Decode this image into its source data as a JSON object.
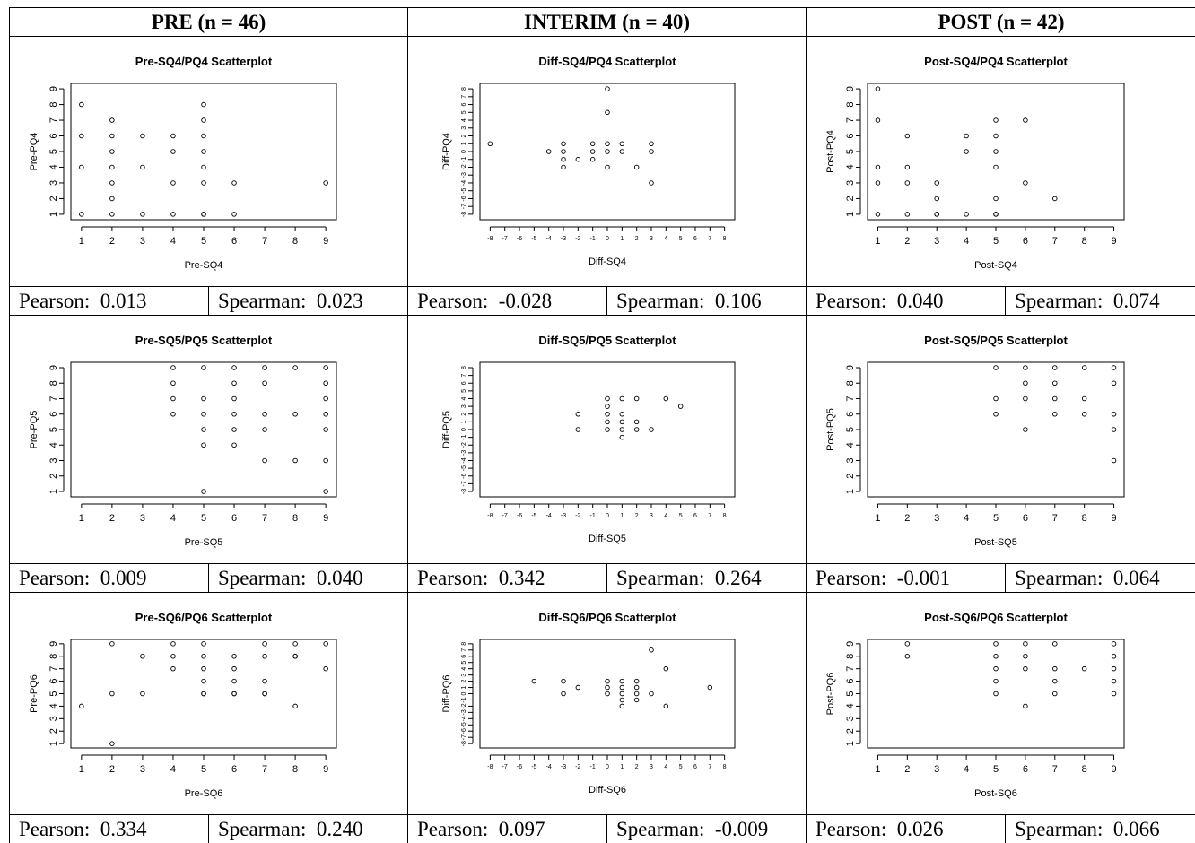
{
  "columns": [
    "PRE (n = 46)",
    "INTERIM (n = 40)",
    "POST (n = 42)"
  ],
  "chart_data": [
    {
      "type": "scatter",
      "title": "Pre-SQ4/PQ4 Scatterplot",
      "xlabel": "Pre-SQ4",
      "ylabel": "Pre-PQ4",
      "xlim": [
        1,
        9
      ],
      "ylim": [
        1,
        9
      ],
      "xticks": [
        "1",
        "2",
        "3",
        "4",
        "5",
        "6",
        "7",
        "8",
        "9"
      ],
      "yticks": [
        "1",
        "2",
        "3",
        "4",
        "5",
        "6",
        "7",
        "8",
        "9"
      ],
      "x": [
        1,
        1,
        1,
        1,
        2,
        2,
        2,
        2,
        2,
        2,
        2,
        3,
        3,
        3,
        4,
        4,
        4,
        4,
        5,
        5,
        5,
        5,
        5,
        5,
        5,
        5,
        6,
        6,
        9
      ],
      "y": [
        8,
        6,
        4,
        1,
        7,
        6,
        5,
        4,
        3,
        2,
        1,
        6,
        4,
        1,
        6,
        5,
        3,
        1,
        8,
        7,
        6,
        5,
        4,
        3,
        1,
        1,
        3,
        1,
        3
      ],
      "stats": {
        "pearson": "0.013",
        "spearman": "0.023"
      }
    },
    {
      "type": "scatter",
      "title": "Diff-SQ4/PQ4 Scatterplot",
      "xlabel": "Diff-SQ4",
      "ylabel": "Diff-PQ4",
      "xlim": [
        -8,
        8
      ],
      "ylim": [
        -8,
        8
      ],
      "xticks": [
        "-8",
        "-7",
        "-6",
        "-5",
        "-4",
        "-3",
        "-2",
        "-1",
        "0",
        "1",
        "2",
        "3",
        "4",
        "5",
        "6",
        "7",
        "8"
      ],
      "yticks": [
        "-8",
        "-7",
        "-6",
        "-5",
        "-4",
        "-3",
        "-2",
        "-1",
        "0",
        "1",
        "2",
        "3",
        "4",
        "5",
        "6",
        "7",
        "8"
      ],
      "x": [
        -8,
        -4,
        -3,
        -3,
        -3,
        -3,
        -2,
        -1,
        -1,
        -1,
        0,
        0,
        0,
        0,
        0,
        1,
        1,
        2,
        3,
        3,
        3
      ],
      "y": [
        1,
        0,
        1,
        0,
        -1,
        -2,
        -1,
        1,
        0,
        -1,
        8,
        5,
        1,
        0,
        -2,
        1,
        0,
        -2,
        1,
        0,
        -4
      ],
      "stats": {
        "pearson": "-0.028",
        "spearman": "0.106"
      }
    },
    {
      "type": "scatter",
      "title": "Post-SQ4/PQ4 Scatterplot",
      "xlabel": "Post-SQ4",
      "ylabel": "Post-PQ4",
      "xlim": [
        1,
        9
      ],
      "ylim": [
        1,
        9
      ],
      "xticks": [
        "1",
        "2",
        "3",
        "4",
        "5",
        "6",
        "7",
        "8",
        "9"
      ],
      "yticks": [
        "1",
        "2",
        "3",
        "4",
        "5",
        "6",
        "7",
        "8",
        "9"
      ],
      "x": [
        1,
        1,
        1,
        1,
        1,
        2,
        2,
        2,
        2,
        3,
        3,
        3,
        3,
        4,
        4,
        4,
        5,
        5,
        5,
        5,
        5,
        5,
        5,
        6,
        6,
        7
      ],
      "y": [
        9,
        7,
        4,
        3,
        1,
        6,
        4,
        3,
        1,
        3,
        2,
        1,
        1,
        6,
        5,
        1,
        7,
        6,
        5,
        4,
        2,
        1,
        1,
        7,
        3,
        2
      ],
      "stats": {
        "pearson": "0.040",
        "spearman": "0.074"
      }
    },
    {
      "type": "scatter",
      "title": "Pre-SQ5/PQ5 Scatterplot",
      "xlabel": "Pre-SQ5",
      "ylabel": "Pre-PQ5",
      "xlim": [
        1,
        9
      ],
      "ylim": [
        1,
        9
      ],
      "xticks": [
        "1",
        "2",
        "3",
        "4",
        "5",
        "6",
        "7",
        "8",
        "9"
      ],
      "yticks": [
        "1",
        "2",
        "3",
        "4",
        "5",
        "6",
        "7",
        "8",
        "9"
      ],
      "x": [
        4,
        4,
        4,
        4,
        5,
        5,
        5,
        5,
        5,
        5,
        6,
        6,
        6,
        6,
        6,
        6,
        7,
        7,
        7,
        7,
        7,
        8,
        8,
        8,
        9,
        9,
        9,
        9,
        9,
        9,
        9
      ],
      "y": [
        9,
        8,
        7,
        6,
        9,
        7,
        6,
        5,
        4,
        1,
        9,
        8,
        7,
        6,
        5,
        4,
        9,
        8,
        6,
        5,
        3,
        9,
        6,
        3,
        9,
        8,
        7,
        6,
        5,
        3,
        1
      ],
      "stats": {
        "pearson": "0.009",
        "spearman": "0.040"
      }
    },
    {
      "type": "scatter",
      "title": "Diff-SQ5/PQ5 Scatterplot",
      "xlabel": "Diff-SQ5",
      "ylabel": "Diff-PQ5",
      "xlim": [
        -8,
        8
      ],
      "ylim": [
        -8,
        8
      ],
      "xticks": [
        "-8",
        "-7",
        "-6",
        "-5",
        "-4",
        "-3",
        "-2",
        "-1",
        "0",
        "1",
        "2",
        "3",
        "4",
        "5",
        "6",
        "7",
        "8"
      ],
      "yticks": [
        "-8",
        "-7",
        "-6",
        "-5",
        "-4",
        "-3",
        "-2",
        "-1",
        "0",
        "1",
        "2",
        "3",
        "4",
        "5",
        "6",
        "7",
        "8"
      ],
      "x": [
        -2,
        -2,
        0,
        0,
        0,
        0,
        0,
        1,
        1,
        1,
        1,
        1,
        2,
        2,
        2,
        3,
        4,
        5
      ],
      "y": [
        2,
        0,
        4,
        3,
        2,
        1,
        0,
        4,
        2,
        1,
        0,
        -1,
        4,
        1,
        0,
        0,
        4,
        3
      ],
      "stats": {
        "pearson": "0.342",
        "spearman": "0.264"
      }
    },
    {
      "type": "scatter",
      "title": "Post-SQ5/PQ5 Scatterplot",
      "xlabel": "Post-SQ5",
      "ylabel": "Post-PQ5",
      "xlim": [
        1,
        9
      ],
      "ylim": [
        1,
        9
      ],
      "xticks": [
        "1",
        "2",
        "3",
        "4",
        "5",
        "6",
        "7",
        "8",
        "9"
      ],
      "yticks": [
        "1",
        "2",
        "3",
        "4",
        "5",
        "6",
        "7",
        "8",
        "9"
      ],
      "x": [
        5,
        5,
        5,
        6,
        6,
        6,
        6,
        7,
        7,
        7,
        7,
        8,
        8,
        8,
        9,
        9,
        9,
        9,
        9
      ],
      "y": [
        9,
        7,
        6,
        9,
        8,
        7,
        5,
        9,
        8,
        7,
        6,
        9,
        7,
        6,
        9,
        8,
        6,
        5,
        3
      ],
      "stats": {
        "pearson": "-0.001",
        "spearman": "0.064"
      }
    },
    {
      "type": "scatter",
      "title": "Pre-SQ6/PQ6 Scatterplot",
      "xlabel": "Pre-SQ6",
      "ylabel": "Pre-PQ6",
      "xlim": [
        1,
        9
      ],
      "ylim": [
        1,
        9
      ],
      "xticks": [
        "1",
        "2",
        "3",
        "4",
        "5",
        "6",
        "7",
        "8",
        "9"
      ],
      "yticks": [
        "1",
        "2",
        "3",
        "4",
        "5",
        "6",
        "7",
        "8",
        "9"
      ],
      "x": [
        1,
        2,
        2,
        2,
        3,
        3,
        4,
        4,
        4,
        5,
        5,
        5,
        5,
        5,
        5,
        6,
        6,
        6,
        6,
        6,
        7,
        7,
        7,
        7,
        7,
        8,
        8,
        8,
        8,
        9,
        9
      ],
      "y": [
        4,
        9,
        5,
        1,
        8,
        5,
        9,
        8,
        7,
        9,
        8,
        7,
        6,
        5,
        5,
        8,
        7,
        6,
        5,
        5,
        9,
        8,
        6,
        5,
        5,
        9,
        8,
        8,
        4,
        9,
        7
      ],
      "stats": {
        "pearson": "0.334",
        "spearman": "0.240"
      }
    },
    {
      "type": "scatter",
      "title": "Diff-SQ6/PQ6 Scatterplot",
      "xlabel": "Diff-SQ6",
      "ylabel": "Diff-PQ6",
      "xlim": [
        -8,
        8
      ],
      "ylim": [
        -8,
        8
      ],
      "xticks": [
        "-8",
        "-7",
        "-6",
        "-5",
        "-4",
        "-3",
        "-2",
        "-1",
        "0",
        "1",
        "2",
        "3",
        "4",
        "5",
        "6",
        "7",
        "8"
      ],
      "yticks": [
        "-8",
        "-7",
        "-6",
        "-5",
        "-4",
        "-3",
        "-2",
        "-1",
        "0",
        "1",
        "2",
        "3",
        "4",
        "5",
        "6",
        "7",
        "8"
      ],
      "x": [
        -5,
        -3,
        -3,
        -2,
        0,
        0,
        0,
        1,
        1,
        1,
        1,
        1,
        2,
        2,
        2,
        2,
        3,
        3,
        4,
        4,
        7
      ],
      "y": [
        2,
        2,
        0,
        1,
        2,
        1,
        0,
        2,
        1,
        0,
        -1,
        -2,
        2,
        1,
        0,
        -1,
        7,
        0,
        4,
        -2,
        1
      ],
      "stats": {
        "pearson": "0.097",
        "spearman": "-0.009"
      }
    },
    {
      "type": "scatter",
      "title": "Post-SQ6/PQ6 Scatterplot",
      "xlabel": "Post-SQ6",
      "ylabel": "Post-PQ6",
      "xlim": [
        1,
        9
      ],
      "ylim": [
        1,
        9
      ],
      "xticks": [
        "1",
        "2",
        "3",
        "4",
        "5",
        "6",
        "7",
        "8",
        "9"
      ],
      "yticks": [
        "1",
        "2",
        "3",
        "4",
        "5",
        "6",
        "7",
        "8",
        "9"
      ],
      "x": [
        2,
        2,
        5,
        5,
        5,
        5,
        5,
        6,
        6,
        6,
        6,
        7,
        7,
        7,
        7,
        8,
        9,
        9,
        9,
        9,
        9
      ],
      "y": [
        9,
        8,
        9,
        8,
        7,
        6,
        5,
        9,
        8,
        7,
        4,
        9,
        7,
        6,
        5,
        7,
        9,
        8,
        7,
        6,
        5
      ],
      "stats": {
        "pearson": "0.026",
        "spearman": "0.066"
      }
    }
  ],
  "stat_labels": {
    "pearson": "Pearson:",
    "spearman": "Spearman:"
  }
}
